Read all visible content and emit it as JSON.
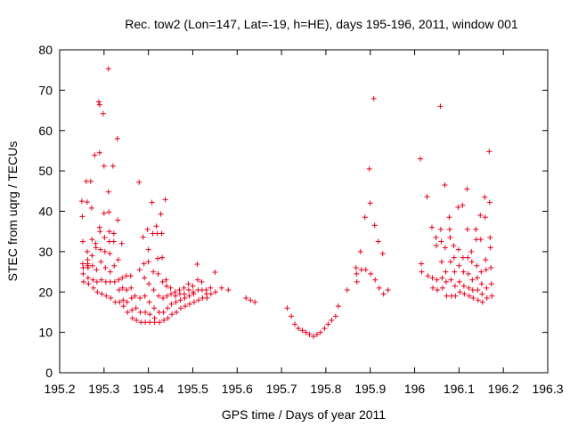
{
  "chart_data": {
    "type": "scatter",
    "title": "Rec. tow2 (Lon=147, Lat=-19, h=HE), days 195-196, 2011, window 001",
    "xlabel": "GPS time / Days of year 2011",
    "ylabel": "STEC from uqrg / TECUs",
    "xlim": [
      195.2,
      196.3
    ],
    "ylim": [
      0,
      80
    ],
    "xticks": [
      195.2,
      195.3,
      195.4,
      195.5,
      195.6,
      195.7,
      195.8,
      195.9,
      196.0,
      196.1,
      196.2,
      196.3
    ],
    "xtick_labels": [
      "195.2",
      "195.3",
      "195.4",
      "195.5",
      "195.6",
      "195.7",
      "195.8",
      "195.9",
      "196",
      "196.1",
      "196.2",
      "196.3"
    ],
    "yticks": [
      0,
      10,
      20,
      30,
      40,
      50,
      60,
      70,
      80
    ],
    "ytick_labels": [
      "0",
      "10",
      "20",
      "30",
      "40",
      "50",
      "60",
      "70",
      "80"
    ],
    "grid": false,
    "legend": "none",
    "marker": "+",
    "marker_color": "#e8001c",
    "series": [
      {
        "name": "STEC",
        "points": [
          [
            195.25,
            42.5
          ],
          [
            195.251,
            38.7
          ],
          [
            195.252,
            32.5
          ],
          [
            195.252,
            27.0
          ],
          [
            195.253,
            26.0
          ],
          [
            195.253,
            24.5
          ],
          [
            195.254,
            22.5
          ],
          [
            195.26,
            47.4
          ],
          [
            195.262,
            42.3
          ],
          [
            195.262,
            30.0
          ],
          [
            195.263,
            28.0
          ],
          [
            195.263,
            27.0
          ],
          [
            195.263,
            26.5
          ],
          [
            195.264,
            26.0
          ],
          [
            195.264,
            23.5
          ],
          [
            195.265,
            22.0
          ],
          [
            195.27,
            47.4
          ],
          [
            195.272,
            40.8
          ],
          [
            195.273,
            33.0
          ],
          [
            195.273,
            29.0
          ],
          [
            195.274,
            26.5
          ],
          [
            195.275,
            23.0
          ],
          [
            195.276,
            21.0
          ],
          [
            195.279,
            53.9
          ],
          [
            195.281,
            32.0
          ],
          [
            195.282,
            31.0
          ],
          [
            195.283,
            25.5
          ],
          [
            195.284,
            22.5
          ],
          [
            195.285,
            20.0
          ],
          [
            195.288,
            67.1
          ],
          [
            195.29,
            66.4
          ],
          [
            195.29,
            54.5
          ],
          [
            195.29,
            36.0
          ],
          [
            195.291,
            35.0
          ],
          [
            195.292,
            30.5
          ],
          [
            195.293,
            27.5
          ],
          [
            195.294,
            23.0
          ],
          [
            195.295,
            19.5
          ],
          [
            195.298,
            64.2
          ],
          [
            195.3,
            51.2
          ],
          [
            195.3,
            39.5
          ],
          [
            195.301,
            33.5
          ],
          [
            195.302,
            30.0
          ],
          [
            195.303,
            26.0
          ],
          [
            195.304,
            22.5
          ],
          [
            195.305,
            19.0
          ],
          [
            195.31,
            75.3
          ],
          [
            195.31,
            44.8
          ],
          [
            195.311,
            39.8
          ],
          [
            195.312,
            35.0
          ],
          [
            195.312,
            32.5
          ],
          [
            195.313,
            29.5
          ],
          [
            195.314,
            25.0
          ],
          [
            195.314,
            22.5
          ],
          [
            195.315,
            18.5
          ],
          [
            195.32,
            51.2
          ],
          [
            195.322,
            34.5
          ],
          [
            195.322,
            32.5
          ],
          [
            195.323,
            26.5
          ],
          [
            195.324,
            22.5
          ],
          [
            195.325,
            17.5
          ],
          [
            195.33,
            58.0
          ],
          [
            195.331,
            37.8
          ],
          [
            195.332,
            28.0
          ],
          [
            195.333,
            23.0
          ],
          [
            195.334,
            20.5
          ],
          [
            195.335,
            17.5
          ],
          [
            195.34,
            32.0
          ],
          [
            195.341,
            23.5
          ],
          [
            195.342,
            21.0
          ],
          [
            195.343,
            18.0
          ],
          [
            195.344,
            16.5
          ],
          [
            195.35,
            24.0
          ],
          [
            195.351,
            20.5
          ],
          [
            195.352,
            17.5
          ],
          [
            195.353,
            15.0
          ],
          [
            195.36,
            24.0
          ],
          [
            195.361,
            21.0
          ],
          [
            195.362,
            18.5
          ],
          [
            195.363,
            15.5
          ],
          [
            195.364,
            13.5
          ],
          [
            195.37,
            19.0
          ],
          [
            195.372,
            16.0
          ],
          [
            195.373,
            13.0
          ],
          [
            195.379,
            47.2
          ],
          [
            195.38,
            25.5
          ],
          [
            195.381,
            18.5
          ],
          [
            195.382,
            15.0
          ],
          [
            195.383,
            12.5
          ],
          [
            195.388,
            33.6
          ],
          [
            195.39,
            27.0
          ],
          [
            195.391,
            23.5
          ],
          [
            195.392,
            19.0
          ],
          [
            195.393,
            15.0
          ],
          [
            195.393,
            12.5
          ],
          [
            195.398,
            35.5
          ],
          [
            195.4,
            30.5
          ],
          [
            195.4,
            27.5
          ],
          [
            195.401,
            22.0
          ],
          [
            195.402,
            17.5
          ],
          [
            195.403,
            14.5
          ],
          [
            195.403,
            12.5
          ],
          [
            195.408,
            42.2
          ],
          [
            195.41,
            34.5
          ],
          [
            195.411,
            25.0
          ],
          [
            195.412,
            20.5
          ],
          [
            195.413,
            16.0
          ],
          [
            195.414,
            13.5
          ],
          [
            195.414,
            12.5
          ],
          [
            195.418,
            36.3
          ],
          [
            195.42,
            34.5
          ],
          [
            195.421,
            28.3
          ],
          [
            195.422,
            24.5
          ],
          [
            195.423,
            19.0
          ],
          [
            195.424,
            15.0
          ],
          [
            195.425,
            12.5
          ],
          [
            195.428,
            39.3
          ],
          [
            195.43,
            34.5
          ],
          [
            195.431,
            28.5
          ],
          [
            195.432,
            22.5
          ],
          [
            195.433,
            18.5
          ],
          [
            195.434,
            15.0
          ],
          [
            195.435,
            13.0
          ],
          [
            195.438,
            42.9
          ],
          [
            195.44,
            23.0
          ],
          [
            195.441,
            21.5
          ],
          [
            195.442,
            19.0
          ],
          [
            195.443,
            16.0
          ],
          [
            195.444,
            13.5
          ],
          [
            195.45,
            21.0
          ],
          [
            195.451,
            19.5
          ],
          [
            195.452,
            17.0
          ],
          [
            195.453,
            14.5
          ],
          [
            195.46,
            20.0
          ],
          [
            195.461,
            19.0
          ],
          [
            195.462,
            17.5
          ],
          [
            195.463,
            15.0
          ],
          [
            195.47,
            20.5
          ],
          [
            195.471,
            19.5
          ],
          [
            195.472,
            18.0
          ],
          [
            195.473,
            16.0
          ],
          [
            195.48,
            21.0
          ],
          [
            195.481,
            19.5
          ],
          [
            195.482,
            18.5
          ],
          [
            195.483,
            16.5
          ],
          [
            195.49,
            22.0
          ],
          [
            195.491,
            20.5
          ],
          [
            195.492,
            19.0
          ],
          [
            195.493,
            17.0
          ],
          [
            195.5,
            21.5
          ],
          [
            195.501,
            20.0
          ],
          [
            195.502,
            19.5
          ],
          [
            195.503,
            17.5
          ],
          [
            195.51,
            26.9
          ],
          [
            195.511,
            23.0
          ],
          [
            195.512,
            20.5
          ],
          [
            195.513,
            18.0
          ],
          [
            195.52,
            22.5
          ],
          [
            195.521,
            20.5
          ],
          [
            195.522,
            18.5
          ],
          [
            195.53,
            20.5
          ],
          [
            195.531,
            19.5
          ],
          [
            195.532,
            18.5
          ],
          [
            195.54,
            21.0
          ],
          [
            195.541,
            19.5
          ],
          [
            195.55,
            24.9
          ],
          [
            195.551,
            20.0
          ],
          [
            195.565,
            21.0
          ],
          [
            195.58,
            20.5
          ],
          [
            195.62,
            18.5
          ],
          [
            195.63,
            18.0
          ],
          [
            195.64,
            17.5
          ],
          [
            195.713,
            16.0
          ],
          [
            195.722,
            14.0
          ],
          [
            195.73,
            12.0
          ],
          [
            195.738,
            11.0
          ],
          [
            195.747,
            10.5
          ],
          [
            195.755,
            10.0
          ],
          [
            195.763,
            9.5
          ],
          [
            195.772,
            9.0
          ],
          [
            195.78,
            9.5
          ],
          [
            195.788,
            10.0
          ],
          [
            195.797,
            11.0
          ],
          [
            195.805,
            12.0
          ],
          [
            195.813,
            13.0
          ],
          [
            195.822,
            14.0
          ],
          [
            195.828,
            16.5
          ],
          [
            195.848,
            20.5
          ],
          [
            195.868,
            26.0
          ],
          [
            195.869,
            24.5
          ],
          [
            195.87,
            22.5
          ],
          [
            195.878,
            30.0
          ],
          [
            195.88,
            25.5
          ],
          [
            195.888,
            38.5
          ],
          [
            195.89,
            25.5
          ],
          [
            195.898,
            50.5
          ],
          [
            195.9,
            42.0
          ],
          [
            195.901,
            24.5
          ],
          [
            195.908,
            67.9
          ],
          [
            195.91,
            36.5
          ],
          [
            195.911,
            23.0
          ],
          [
            195.918,
            32.5
          ],
          [
            195.92,
            21.0
          ],
          [
            195.928,
            29.5
          ],
          [
            195.93,
            19.5
          ],
          [
            195.94,
            20.5
          ],
          [
            196.013,
            53.0
          ],
          [
            196.015,
            27.0
          ],
          [
            196.016,
            25.0
          ],
          [
            196.028,
            43.6
          ],
          [
            196.03,
            24.0
          ],
          [
            196.039,
            36.0
          ],
          [
            196.04,
            23.5
          ],
          [
            196.041,
            21.0
          ],
          [
            196.048,
            33.5
          ],
          [
            196.049,
            31.5
          ],
          [
            196.05,
            23.0
          ],
          [
            196.051,
            20.5
          ],
          [
            196.058,
            66.0
          ],
          [
            196.059,
            35.5
          ],
          [
            196.06,
            32.5
          ],
          [
            196.061,
            27.5
          ],
          [
            196.062,
            23.5
          ],
          [
            196.063,
            21.0
          ],
          [
            196.068,
            46.5
          ],
          [
            196.069,
            31.0
          ],
          [
            196.07,
            25.0
          ],
          [
            196.071,
            22.5
          ],
          [
            196.072,
            19.0
          ],
          [
            196.078,
            38.5
          ],
          [
            196.079,
            35.5
          ],
          [
            196.08,
            33.5
          ],
          [
            196.081,
            27.5
          ],
          [
            196.082,
            23.0
          ],
          [
            196.083,
            19.0
          ],
          [
            196.088,
            31.5
          ],
          [
            196.089,
            28.5
          ],
          [
            196.09,
            25.0
          ],
          [
            196.091,
            21.5
          ],
          [
            196.092,
            19.0
          ],
          [
            196.098,
            41.0
          ],
          [
            196.099,
            30.5
          ],
          [
            196.1,
            26.5
          ],
          [
            196.101,
            22.5
          ],
          [
            196.102,
            20.0
          ],
          [
            196.108,
            41.5
          ],
          [
            196.109,
            28.5
          ],
          [
            196.11,
            25.0
          ],
          [
            196.111,
            21.5
          ],
          [
            196.112,
            19.5
          ],
          [
            196.118,
            45.5
          ],
          [
            196.119,
            35.5
          ],
          [
            196.12,
            28.5
          ],
          [
            196.121,
            24.5
          ],
          [
            196.122,
            21.0
          ],
          [
            196.123,
            19.0
          ],
          [
            196.128,
            30.0
          ],
          [
            196.129,
            27.5
          ],
          [
            196.13,
            23.0
          ],
          [
            196.131,
            20.5
          ],
          [
            196.132,
            18.5
          ],
          [
            196.138,
            35.5
          ],
          [
            196.139,
            33.0
          ],
          [
            196.14,
            26.5
          ],
          [
            196.141,
            23.5
          ],
          [
            196.142,
            20.5
          ],
          [
            196.143,
            18.0
          ],
          [
            196.148,
            39.0
          ],
          [
            196.149,
            33.0
          ],
          [
            196.15,
            25.0
          ],
          [
            196.151,
            22.0
          ],
          [
            196.152,
            19.5
          ],
          [
            196.153,
            17.5
          ],
          [
            196.158,
            43.5
          ],
          [
            196.159,
            38.5
          ],
          [
            196.16,
            28.0
          ],
          [
            196.161,
            25.5
          ],
          [
            196.162,
            21.0
          ],
          [
            196.163,
            18.5
          ],
          [
            196.168,
            54.8
          ],
          [
            196.169,
            42.2
          ],
          [
            196.17,
            33.5
          ],
          [
            196.171,
            31.0
          ],
          [
            196.172,
            26.0
          ],
          [
            196.173,
            22.0
          ],
          [
            196.174,
            19.0
          ]
        ]
      }
    ]
  }
}
